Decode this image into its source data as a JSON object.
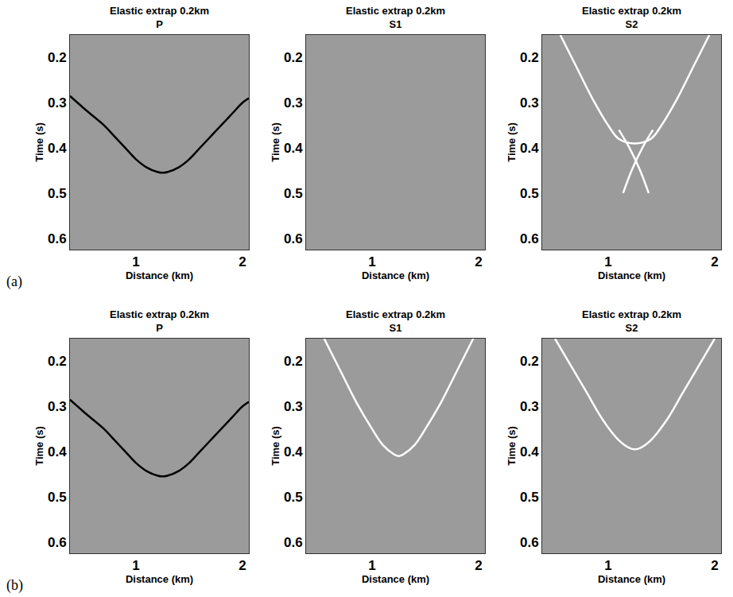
{
  "row_labels": [
    "(a)",
    "(b)"
  ],
  "chart_data": [
    {
      "type": "line",
      "title": "Elastic extrap 0.2km",
      "subtitle": "P",
      "x_label": "Distance (km)",
      "y_label": "Time (s)",
      "xlim": [
        0.38,
        2.06
      ],
      "ylim": [
        0.625,
        0.15
      ],
      "xticks": [
        1,
        2
      ],
      "yticks": [
        0.2,
        0.3,
        0.4,
        0.5,
        0.6
      ],
      "grid": false,
      "series": [
        {
          "color": "#000000",
          "x": [
            0.38,
            0.5,
            0.6,
            0.7,
            0.8,
            0.9,
            1.0,
            1.1,
            1.2,
            1.25,
            1.3,
            1.4,
            1.5,
            1.6,
            1.7,
            1.8,
            1.9,
            2.0,
            2.06
          ],
          "values": [
            0.285,
            0.31,
            0.33,
            0.35,
            0.375,
            0.4,
            0.425,
            0.443,
            0.453,
            0.455,
            0.453,
            0.443,
            0.425,
            0.4,
            0.375,
            0.35,
            0.325,
            0.3,
            0.29
          ]
        }
      ]
    },
    {
      "type": "line",
      "title": "Elastic extrap 0.2km",
      "subtitle": "S1",
      "x_label": "Distance (km)",
      "y_label": "Time (s)",
      "xlim": [
        0.38,
        2.06
      ],
      "ylim": [
        0.625,
        0.15
      ],
      "xticks": [
        1,
        2
      ],
      "yticks": [
        0.2,
        0.3,
        0.4,
        0.5,
        0.6
      ],
      "grid": false,
      "series": []
    },
    {
      "type": "line",
      "title": "Elastic extrap 0.2km",
      "subtitle": "S2",
      "x_label": "Distance (km)",
      "y_label": "Time (s)",
      "xlim": [
        0.38,
        2.06
      ],
      "ylim": [
        0.625,
        0.15
      ],
      "xticks": [
        1,
        2
      ],
      "yticks": [
        0.2,
        0.3,
        0.4,
        0.5,
        0.6
      ],
      "grid": false,
      "series": [
        {
          "color": "#ffffff",
          "x": [
            0.55,
            0.7,
            0.85,
            1.0,
            1.1,
            1.25,
            1.4,
            1.5,
            1.65,
            1.8,
            1.95
          ],
          "values": [
            0.15,
            0.22,
            0.29,
            0.35,
            0.38,
            0.39,
            0.38,
            0.35,
            0.29,
            0.22,
            0.15
          ]
        },
        {
          "color": "#ffffff",
          "x": [
            1.1,
            1.2,
            1.3,
            1.38
          ],
          "values": [
            0.36,
            0.4,
            0.45,
            0.5
          ]
        },
        {
          "color": "#ffffff",
          "x": [
            1.42,
            1.32,
            1.22,
            1.14
          ],
          "values": [
            0.36,
            0.4,
            0.45,
            0.5
          ]
        }
      ]
    },
    {
      "type": "line",
      "title": "Elastic extrap 0.2km",
      "subtitle": "P",
      "x_label": "Distance (km)",
      "y_label": "Time (s)",
      "xlim": [
        0.38,
        2.06
      ],
      "ylim": [
        0.625,
        0.15
      ],
      "xticks": [
        1,
        2
      ],
      "yticks": [
        0.2,
        0.3,
        0.4,
        0.5,
        0.6
      ],
      "grid": false,
      "series": [
        {
          "color": "#000000",
          "x": [
            0.38,
            0.5,
            0.6,
            0.7,
            0.8,
            0.9,
            1.0,
            1.1,
            1.2,
            1.25,
            1.3,
            1.4,
            1.5,
            1.6,
            1.7,
            1.8,
            1.9,
            2.0,
            2.06
          ],
          "values": [
            0.285,
            0.31,
            0.33,
            0.35,
            0.375,
            0.4,
            0.425,
            0.443,
            0.453,
            0.455,
            0.453,
            0.443,
            0.425,
            0.4,
            0.375,
            0.35,
            0.325,
            0.3,
            0.29
          ]
        }
      ]
    },
    {
      "type": "line",
      "title": "Elastic extrap 0.2km",
      "subtitle": "S1",
      "x_label": "Distance (km)",
      "y_label": "Time (s)",
      "xlim": [
        0.38,
        2.06
      ],
      "ylim": [
        0.625,
        0.15
      ],
      "xticks": [
        1,
        2
      ],
      "yticks": [
        0.2,
        0.3,
        0.4,
        0.5,
        0.6
      ],
      "grid": false,
      "series": [
        {
          "color": "#ffffff",
          "x": [
            0.55,
            0.7,
            0.85,
            1.0,
            1.1,
            1.2,
            1.25,
            1.3,
            1.4,
            1.5,
            1.65,
            1.8,
            1.95
          ],
          "values": [
            0.15,
            0.22,
            0.29,
            0.35,
            0.385,
            0.405,
            0.41,
            0.405,
            0.385,
            0.35,
            0.29,
            0.22,
            0.15
          ]
        }
      ]
    },
    {
      "type": "line",
      "title": "Elastic extrap 0.2km",
      "subtitle": "S2",
      "x_label": "Distance (km)",
      "y_label": "Time (s)",
      "xlim": [
        0.38,
        2.06
      ],
      "ylim": [
        0.625,
        0.15
      ],
      "xticks": [
        1,
        2
      ],
      "yticks": [
        0.2,
        0.3,
        0.4,
        0.5,
        0.6
      ],
      "grid": false,
      "series": [
        {
          "color": "#ffffff",
          "x": [
            0.5,
            0.65,
            0.8,
            0.95,
            1.1,
            1.2,
            1.25,
            1.3,
            1.4,
            1.55,
            1.7,
            1.85,
            2.0
          ],
          "values": [
            0.15,
            0.21,
            0.27,
            0.33,
            0.375,
            0.392,
            0.395,
            0.392,
            0.375,
            0.33,
            0.27,
            0.21,
            0.15
          ]
        }
      ]
    }
  ]
}
